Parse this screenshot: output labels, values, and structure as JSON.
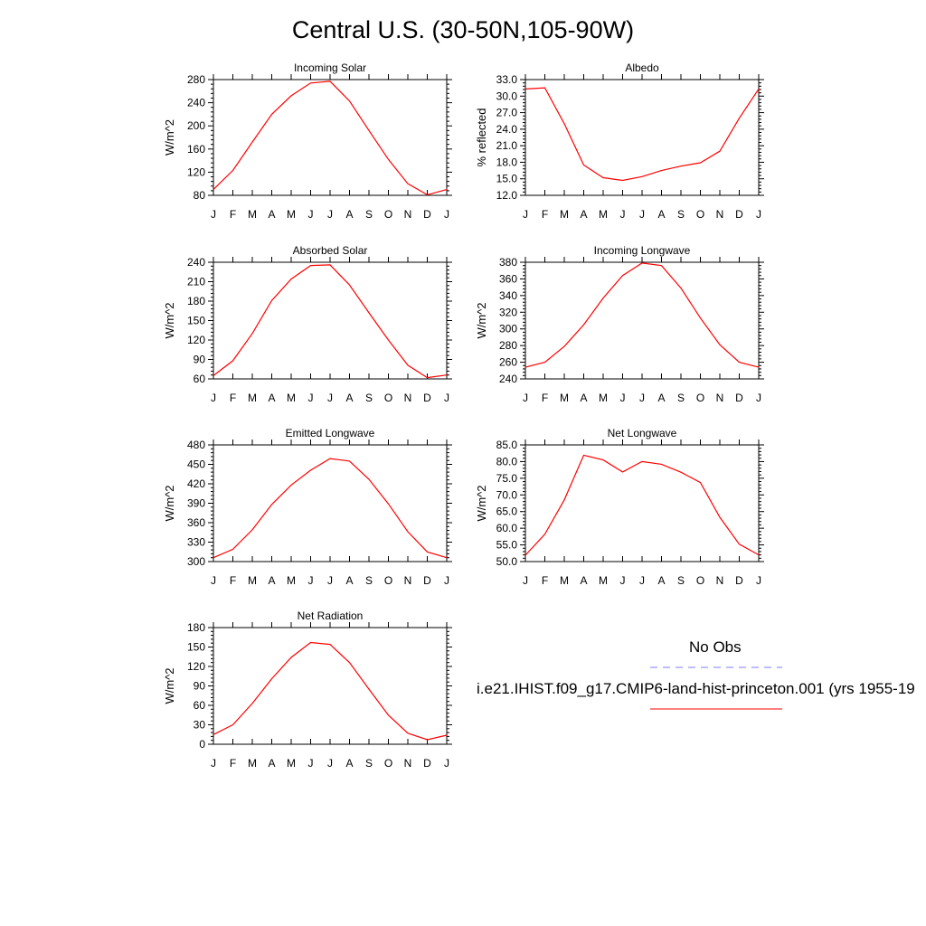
{
  "title": "Central U.S. (30-50N,105-90W)",
  "months": [
    "J",
    "F",
    "M",
    "A",
    "M",
    "J",
    "J",
    "A",
    "S",
    "O",
    "N",
    "D",
    "J"
  ],
  "legend": {
    "obs_label": "No Obs",
    "obs_color": "#7b7bff",
    "case_label": "i.e21.IHIST.f09_g17.CMIP6-land-hist-princeton.001 (yrs 1955-19",
    "case_color": "#ff0000"
  },
  "chart_data": [
    {
      "type": "line",
      "title": "Incoming Solar",
      "ylabel": "W/m^2",
      "ylim": [
        80,
        280
      ],
      "yticks": [
        80,
        120,
        160,
        200,
        240,
        280
      ],
      "ytick_labels": [
        "80",
        "120",
        "160",
        "200",
        "240",
        "280"
      ],
      "series": [
        {
          "color": "#ff0000",
          "values": [
            90,
            123,
            172,
            220,
            252,
            274,
            277,
            243,
            192,
            142,
            100,
            81,
            90
          ]
        }
      ]
    },
    {
      "type": "line",
      "title": "Albedo",
      "ylabel": "% reflected",
      "ylim": [
        12,
        33
      ],
      "yticks": [
        12,
        15,
        18,
        21,
        24,
        27,
        30,
        33
      ],
      "ytick_labels": [
        "12.0",
        "15.0",
        "18.0",
        "21.0",
        "24.0",
        "27.0",
        "30.0",
        "33.0"
      ],
      "series": [
        {
          "color": "#ff0000",
          "values": [
            31.3,
            31.5,
            25.0,
            17.5,
            15.2,
            14.7,
            15.4,
            16.5,
            17.3,
            17.9,
            20.0,
            26.0,
            31.3
          ]
        }
      ]
    },
    {
      "type": "line",
      "title": "Absorbed Solar",
      "ylabel": "W/m^2",
      "ylim": [
        60,
        240
      ],
      "yticks": [
        60,
        90,
        120,
        150,
        180,
        210,
        240
      ],
      "ytick_labels": [
        "60",
        "90",
        "120",
        "150",
        "180",
        "210",
        "240"
      ],
      "series": [
        {
          "color": "#ff0000",
          "values": [
            65,
            88,
            130,
            181,
            214,
            235,
            236,
            205,
            162,
            120,
            81,
            62,
            66
          ]
        }
      ]
    },
    {
      "type": "line",
      "title": "Incoming Longwave",
      "ylabel": "W/m^2",
      "ylim": [
        240,
        380
      ],
      "yticks": [
        240,
        260,
        280,
        300,
        320,
        340,
        360,
        380
      ],
      "ytick_labels": [
        "240",
        "260",
        "280",
        "300",
        "320",
        "340",
        "360",
        "380"
      ],
      "series": [
        {
          "color": "#ff0000",
          "values": [
            254,
            260,
            279,
            305,
            337,
            364,
            379,
            376,
            349,
            313,
            281,
            260,
            254
          ]
        }
      ]
    },
    {
      "type": "line",
      "title": "Emitted Longwave",
      "ylabel": "W/m^2",
      "ylim": [
        300,
        480
      ],
      "yticks": [
        300,
        330,
        360,
        390,
        420,
        450,
        480
      ],
      "ytick_labels": [
        "300",
        "330",
        "360",
        "390",
        "420",
        "450",
        "480"
      ],
      "series": [
        {
          "color": "#ff0000",
          "values": [
            306,
            319,
            349,
            388,
            418,
            441,
            459,
            455,
            427,
            389,
            346,
            315,
            306
          ]
        }
      ]
    },
    {
      "type": "line",
      "title": "Net Longwave",
      "ylabel": "W/m^2",
      "ylim": [
        50,
        85
      ],
      "yticks": [
        50,
        55,
        60,
        65,
        70,
        75,
        80,
        85
      ],
      "ytick_labels": [
        "50.0",
        "55.0",
        "60.0",
        "65.0",
        "70.0",
        "75.0",
        "80.0",
        "85.0"
      ],
      "series": [
        {
          "color": "#ff0000",
          "values": [
            51.9,
            58.2,
            68.5,
            81.9,
            80.5,
            76.9,
            80.0,
            79.2,
            76.8,
            73.7,
            63.3,
            55.2,
            52.0
          ]
        }
      ]
    },
    {
      "type": "line",
      "title": "Net Radiation",
      "ylabel": "W/m^2",
      "ylim": [
        0,
        180
      ],
      "yticks": [
        0,
        30,
        60,
        90,
        120,
        150,
        180
      ],
      "ytick_labels": [
        "0",
        "30",
        "60",
        "90",
        "120",
        "150",
        "180"
      ],
      "series": [
        {
          "color": "#ff0000",
          "values": [
            15,
            30,
            63,
            101,
            134,
            157,
            154,
            126,
            85,
            45,
            17,
            7,
            14
          ]
        }
      ]
    }
  ]
}
